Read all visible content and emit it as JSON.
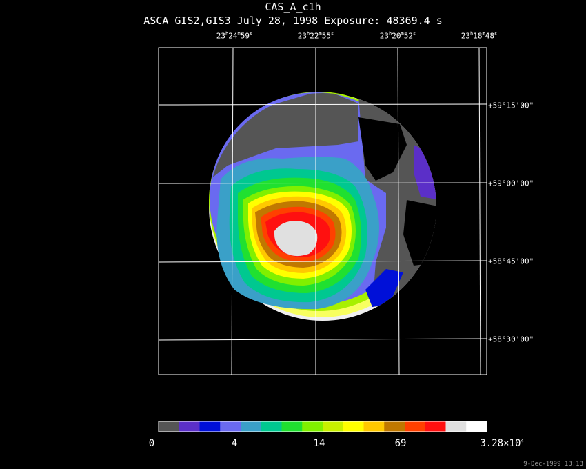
{
  "header": {
    "title": "CAS_A_c1h",
    "subtitle": "ASCA GIS2,GIS3 July 28, 1998 Exposure: 48369.4 s"
  },
  "axes": {
    "ra_labels": [
      {
        "h": "23",
        "m": "24",
        "s": "59"
      },
      {
        "h": "23",
        "m": "22",
        "s": "55"
      },
      {
        "h": "23",
        "m": "20",
        "s": "52"
      },
      {
        "h": "23",
        "m": "18",
        "s": "48"
      }
    ],
    "dec_labels": [
      "+59°15'00\"",
      "+59°00'00\"",
      "+58°45'00\"",
      "+58°30'00\""
    ]
  },
  "colorbar": {
    "colors": [
      "#555555",
      "#5b2fc8",
      "#0010d8",
      "#6a6af0",
      "#3aa0c8",
      "#00c890",
      "#20e030",
      "#80f000",
      "#c8f000",
      "#ffff00",
      "#ffc800",
      "#c07800",
      "#ff4000",
      "#ff1010",
      "#e0e0e0",
      "#ffffff"
    ],
    "labels": [
      "0",
      "4",
      "14",
      "69",
      "3.28×10"
    ],
    "max_exponent": "4"
  },
  "footer": {
    "stamp": "9-Dec-1999 13:13"
  }
}
